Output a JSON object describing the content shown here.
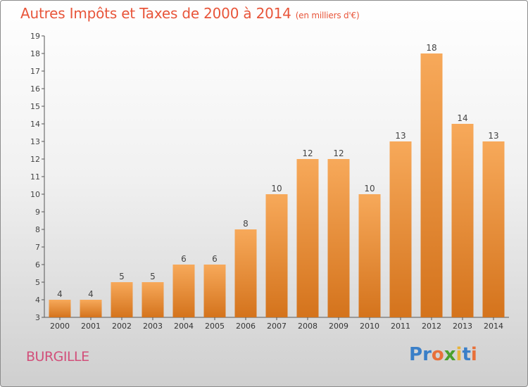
{
  "header": {
    "title": "Autres Impôts et Taxes de 2000 à 2014",
    "unit": "(en milliers d'€)"
  },
  "location": "BURGILLE",
  "logo": {
    "text": "Proxiti"
  },
  "colors": {
    "bar_light": "#f7a95a",
    "bar_dark": "#d4731c",
    "title": "#e8553a",
    "location": "#d24f7a"
  },
  "chart_data": {
    "type": "bar",
    "title": "Autres Impôts et Taxes de 2000 à 2014",
    "xlabel": "",
    "ylabel": "",
    "categories": [
      "2000",
      "2001",
      "2002",
      "2003",
      "2004",
      "2005",
      "2006",
      "2007",
      "2008",
      "2009",
      "2010",
      "2011",
      "2012",
      "2013",
      "2014"
    ],
    "values": [
      4,
      4,
      5,
      5,
      6,
      6,
      8,
      10,
      12,
      12,
      10,
      13,
      18,
      14,
      13
    ],
    "ylim": [
      3,
      19
    ],
    "yticks": [
      3,
      4,
      5,
      6,
      7,
      8,
      9,
      10,
      11,
      12,
      13,
      14,
      15,
      16,
      17,
      18,
      19
    ],
    "grid": false,
    "legend": "none"
  }
}
